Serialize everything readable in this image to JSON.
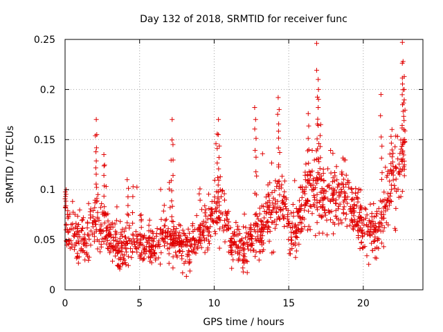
{
  "chart_data": {
    "type": "scatter",
    "title": "Day 132 of 2018, SRMTID for receiver func",
    "xlabel": "GPS time / hours",
    "ylabel": "SRMTID / TECUs",
    "xlim": [
      0,
      24
    ],
    "ylim": [
      0,
      0.25
    ],
    "x_ticks": [
      0,
      5,
      10,
      15,
      20
    ],
    "x_tick_labels": [
      "0",
      "5",
      "10",
      "15",
      "20"
    ],
    "y_ticks": [
      0,
      0.05,
      0.1,
      0.15,
      0.2,
      0.25
    ],
    "y_tick_labels": [
      "0",
      "0.05",
      "0.1",
      "0.15",
      "0.2",
      "0.25"
    ],
    "grid": true,
    "marker": "+",
    "color": "#e00000",
    "trend": [
      [
        0.0,
        0.07
      ],
      [
        0.5,
        0.055
      ],
      [
        1.0,
        0.05
      ],
      [
        1.5,
        0.055
      ],
      [
        2.0,
        0.07
      ],
      [
        2.5,
        0.065
      ],
      [
        3.0,
        0.055
      ],
      [
        3.5,
        0.04
      ],
      [
        4.0,
        0.045
      ],
      [
        4.5,
        0.05
      ],
      [
        5.0,
        0.05
      ],
      [
        5.5,
        0.045
      ],
      [
        6.0,
        0.05
      ],
      [
        6.5,
        0.05
      ],
      [
        7.0,
        0.05
      ],
      [
        7.5,
        0.045
      ],
      [
        8.0,
        0.045
      ],
      [
        8.5,
        0.045
      ],
      [
        9.0,
        0.05
      ],
      [
        9.5,
        0.07
      ],
      [
        10.0,
        0.075
      ],
      [
        10.5,
        0.08
      ],
      [
        11.0,
        0.05
      ],
      [
        11.5,
        0.045
      ],
      [
        12.0,
        0.04
      ],
      [
        12.5,
        0.05
      ],
      [
        13.0,
        0.06
      ],
      [
        13.5,
        0.07
      ],
      [
        14.0,
        0.085
      ],
      [
        14.5,
        0.09
      ],
      [
        15.0,
        0.06
      ],
      [
        15.5,
        0.06
      ],
      [
        16.0,
        0.085
      ],
      [
        16.5,
        0.1
      ],
      [
        17.0,
        0.09
      ],
      [
        17.5,
        0.09
      ],
      [
        18.0,
        0.1
      ],
      [
        18.5,
        0.1
      ],
      [
        19.0,
        0.085
      ],
      [
        19.5,
        0.08
      ],
      [
        20.0,
        0.065
      ],
      [
        20.5,
        0.06
      ],
      [
        21.0,
        0.055
      ],
      [
        21.5,
        0.09
      ],
      [
        22.0,
        0.11
      ],
      [
        22.5,
        0.12
      ],
      [
        22.8,
        0.13
      ]
    ],
    "peaks": [
      [
        0.05,
        0.1
      ],
      [
        2.05,
        0.17
      ],
      [
        2.1,
        0.155
      ],
      [
        2.6,
        0.135
      ],
      [
        4.2,
        0.11
      ],
      [
        7.15,
        0.17
      ],
      [
        7.2,
        0.145
      ],
      [
        10.25,
        0.17
      ],
      [
        10.3,
        0.155
      ],
      [
        12.75,
        0.182
      ],
      [
        12.8,
        0.17
      ],
      [
        14.3,
        0.192
      ],
      [
        14.35,
        0.18
      ],
      [
        16.3,
        0.176
      ],
      [
        16.9,
        0.246
      ],
      [
        16.95,
        0.21
      ],
      [
        17.0,
        0.2
      ],
      [
        17.1,
        0.165
      ],
      [
        21.2,
        0.195
      ],
      [
        21.9,
        0.16
      ],
      [
        22.6,
        0.247
      ],
      [
        22.65,
        0.228
      ],
      [
        22.7,
        0.213
      ],
      [
        22.75,
        0.2
      ]
    ]
  }
}
